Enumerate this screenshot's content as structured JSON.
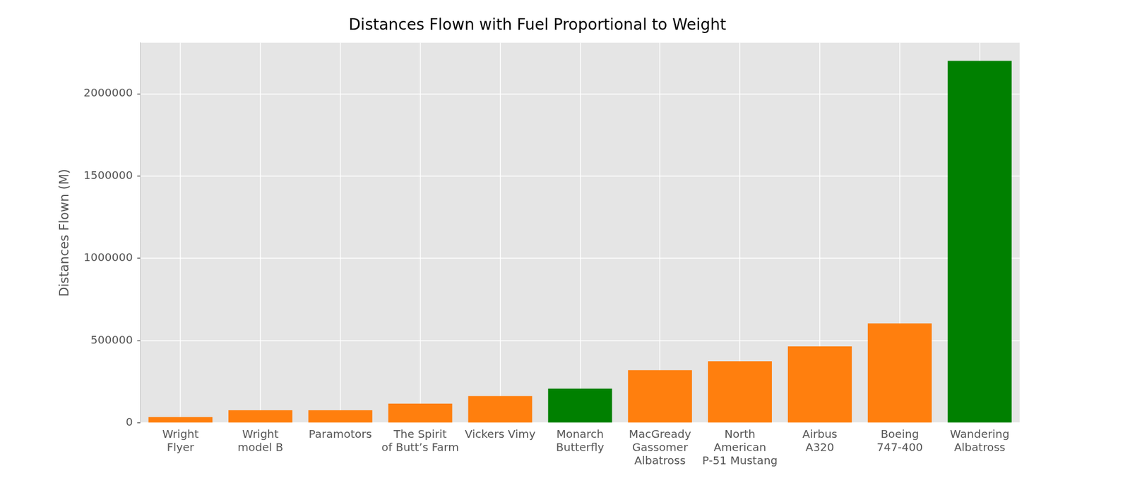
{
  "chart_data": {
    "type": "bar",
    "title": "Distances Flown with Fuel Proportional to Weight",
    "y_label": "Distances Flown (M)",
    "categories": [
      "Wright\nFlyer",
      "Wright\nmodel B",
      "Paramotors",
      "The Spirit\nof Butt’s Farm",
      "Vickers Vimy",
      "Monarch\nButterfly",
      "MacGready\nGassomer\nAlbatross",
      "North\nAmerican\nP-51 Mustang",
      "Airbus\nA320",
      "Boeing\n747-400",
      "Wandering\nAlbatross"
    ],
    "values": [
      36000,
      77000,
      77000,
      117000,
      163000,
      208000,
      320000,
      375000,
      465000,
      605000,
      2200000
    ],
    "colors": [
      "#ff7f0e",
      "#ff7f0e",
      "#ff7f0e",
      "#ff7f0e",
      "#ff7f0e",
      "#008000",
      "#ff7f0e",
      "#ff7f0e",
      "#ff7f0e",
      "#ff7f0e",
      "#008000"
    ],
    "ylim": [
      0,
      2310000
    ],
    "yticks": [
      0,
      500000,
      1000000,
      1500000,
      2000000
    ],
    "grid": true
  }
}
